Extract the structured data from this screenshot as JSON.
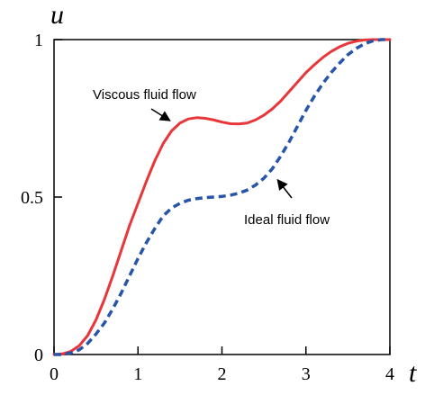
{
  "chart_data": {
    "type": "line",
    "title": "",
    "xlabel": "t",
    "ylabel": "u",
    "xlim": [
      0,
      4
    ],
    "ylim": [
      0,
      1
    ],
    "x_ticks": [
      0,
      1,
      2,
      3,
      4
    ],
    "x_tick_labels": [
      "0",
      "1",
      "2",
      "3",
      "4"
    ],
    "y_ticks": [
      0,
      0.5,
      1
    ],
    "y_tick_labels": [
      "0",
      "0.5",
      "1"
    ],
    "grid": false,
    "legend": "none",
    "series": [
      {
        "label": "Viscous fluid flow",
        "color": "#e8363a",
        "style": "solid",
        "x": [
          0,
          0.1,
          0.2,
          0.3,
          0.4,
          0.5,
          0.6,
          0.7,
          0.8,
          0.9,
          1.0,
          1.1,
          1.2,
          1.3,
          1.4,
          1.5,
          1.6,
          1.7,
          1.8,
          1.9,
          2.0,
          2.1,
          2.2,
          2.3,
          2.4,
          2.5,
          2.6,
          2.7,
          2.8,
          2.9,
          3.0,
          3.1,
          3.2,
          3.3,
          3.4,
          3.5,
          3.6,
          3.7,
          3.8,
          3.9,
          4.0
        ],
        "y": [
          0.0,
          0.002,
          0.01,
          0.028,
          0.06,
          0.11,
          0.175,
          0.25,
          0.33,
          0.41,
          0.48,
          0.55,
          0.615,
          0.67,
          0.71,
          0.735,
          0.748,
          0.752,
          0.75,
          0.745,
          0.738,
          0.733,
          0.732,
          0.735,
          0.745,
          0.76,
          0.78,
          0.805,
          0.835,
          0.865,
          0.895,
          0.92,
          0.943,
          0.962,
          0.977,
          0.988,
          0.995,
          0.999,
          1.0,
          1.0,
          1.0
        ]
      },
      {
        "label": "Ideal fluid flow",
        "color": "#2855a8",
        "style": "dashed",
        "x": [
          0,
          0.1,
          0.2,
          0.3,
          0.4,
          0.5,
          0.6,
          0.7,
          0.8,
          0.9,
          1.0,
          1.1,
          1.2,
          1.3,
          1.4,
          1.5,
          1.6,
          1.7,
          1.8,
          1.9,
          2.0,
          2.1,
          2.2,
          2.3,
          2.4,
          2.5,
          2.6,
          2.7,
          2.8,
          2.9,
          3.0,
          3.1,
          3.2,
          3.3,
          3.4,
          3.5,
          3.6,
          3.7,
          3.8,
          3.9,
          4.0
        ],
        "y": [
          0.0,
          0.0,
          0.005,
          0.015,
          0.035,
          0.065,
          0.1,
          0.145,
          0.195,
          0.25,
          0.305,
          0.355,
          0.4,
          0.44,
          0.465,
          0.48,
          0.49,
          0.495,
          0.498,
          0.5,
          0.502,
          0.506,
          0.512,
          0.522,
          0.538,
          0.56,
          0.59,
          0.63,
          0.675,
          0.725,
          0.775,
          0.82,
          0.86,
          0.895,
          0.925,
          0.952,
          0.972,
          0.987,
          0.996,
          1.0,
          1.0
        ]
      }
    ],
    "annotations": [
      {
        "text": "Viscous fluid flow",
        "target": [
          1.4,
          0.72
        ]
      },
      {
        "text": "Ideal fluid flow",
        "target": [
          2.6,
          0.56
        ]
      }
    ]
  }
}
